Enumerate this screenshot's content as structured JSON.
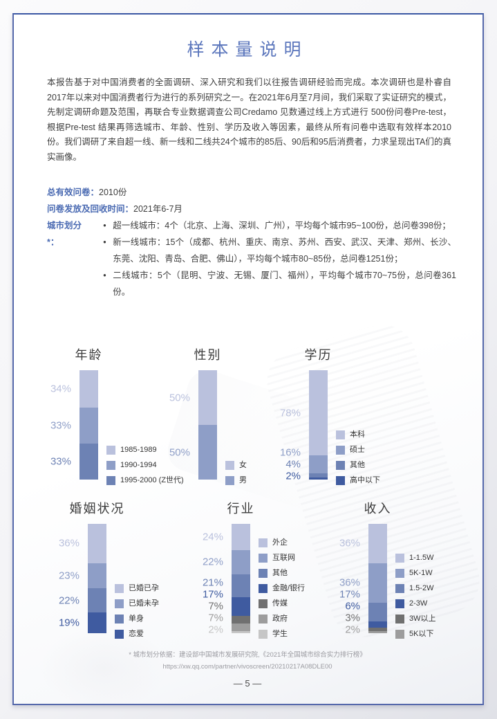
{
  "page": {
    "title": "样本量说明",
    "paragraph": "本报告基于对中国消费者的全面调研、深入研究和我们以往报告调研经验而完成。本次调研也是朴睿自2017年以来对中国消费者行为进行的系列研究之一。在2021年6月至7月间，我们采取了实证研究的模式，先制定调研命题及范围，再联合专业数据调查公司Credamo 见数通过线上方式进行 500份问卷Pre-test，根据Pre-test 结果再筛选城市、年龄、性别、学历及收入等因素，最终从所有问卷中选取有效样本2010份。我们调研了来自超一线、新一线和二线共24个城市的85后、90后和95后消费者，力求呈现出TA们的真实画像。",
    "info": {
      "total": {
        "label": "总有效问卷：",
        "value": "2010份"
      },
      "time": {
        "label": "问卷发放及回收时间：",
        "value": "2021年6-7月"
      },
      "city": {
        "label": "城市划分*："
      }
    },
    "bullets": [
      "超一线城市：4个（北京、上海、深圳、广州），平均每个城市95~100份，总问卷398份；",
      "新一线城市：15个（成都、杭州、重庆、南京、苏州、西安、武汉、天津、郑州、长沙、东莞、沈阳、青岛、合肥、佛山），平均每个城市80~85份，总问卷1251份；",
      "二线城市：5个（昆明、宁波、无锡、厦门、福州），平均每个城市70~75份，总问卷361份。"
    ],
    "footnote": {
      "line1": "* 城市划分依据：建设部中国城市发展研究院,《2021年全国城市综合实力排行榜》",
      "line2": "https://xw.qq.com/partner/vivoscreen/20210217A08DLE00"
    },
    "page_number": "— 5 —"
  },
  "colors": {
    "title_blue": "#5b76bc",
    "label_blue": "#4a6ab2",
    "ramp_light": "#bac1dd",
    "ramp_mid": "#8e9ec7",
    "ramp_dark": "#6d82b4",
    "ramp_navy": "#3f5ba0",
    "gray_dark": "#707070",
    "gray_mid": "#9d9d9d",
    "gray_light": "#c6c6c6"
  },
  "chart_data": [
    {
      "type": "bar",
      "title": "年龄",
      "stacked": true,
      "unit": "%",
      "segments": [
        {
          "label": "1985-1989",
          "value": 34,
          "color": "#bac1dd"
        },
        {
          "label": "1990-1994",
          "value": 33,
          "color": "#8e9ec7"
        },
        {
          "label": "1995-2000 (Z世代)",
          "value": 33,
          "color": "#6d82b4"
        }
      ]
    },
    {
      "type": "bar",
      "title": "性别",
      "stacked": true,
      "unit": "%",
      "segments": [
        {
          "label": "女",
          "value": 50,
          "color": "#bac1dd"
        },
        {
          "label": "男",
          "value": 50,
          "color": "#8e9ec7"
        }
      ]
    },
    {
      "type": "bar",
      "title": "学历",
      "stacked": true,
      "unit": "%",
      "segments": [
        {
          "label": "本科",
          "value": 78,
          "color": "#bac1dd"
        },
        {
          "label": "硕士",
          "value": 16,
          "color": "#8e9ec7"
        },
        {
          "label": "其他",
          "value": 4,
          "color": "#6d82b4"
        },
        {
          "label": "高中以下",
          "value": 2,
          "color": "#3f5ba0"
        }
      ]
    },
    {
      "type": "bar",
      "title": "婚姻状况",
      "stacked": true,
      "unit": "%",
      "segments": [
        {
          "label": "已婚已孕",
          "value": 36,
          "color": "#bac1dd"
        },
        {
          "label": "已婚未孕",
          "value": 23,
          "color": "#8e9ec7"
        },
        {
          "label": "单身",
          "value": 22,
          "color": "#6d82b4"
        },
        {
          "label": "恋爱",
          "value": 19,
          "color": "#3f5ba0"
        }
      ]
    },
    {
      "type": "bar",
      "title": "行业",
      "stacked": true,
      "unit": "%",
      "segments": [
        {
          "label": "外企",
          "value": 24,
          "color": "#bac1dd"
        },
        {
          "label": "互联网",
          "value": 22,
          "color": "#8e9ec7"
        },
        {
          "label": "其他",
          "value": 21,
          "color": "#6d82b4"
        },
        {
          "label": "金融/银行",
          "value": 17,
          "color": "#3f5ba0"
        },
        {
          "label": "传媒",
          "value": 7,
          "color": "#707070"
        },
        {
          "label": "政府",
          "value": 7,
          "color": "#9d9d9d"
        },
        {
          "label": "学生",
          "value": 2,
          "color": "#c6c6c6"
        }
      ]
    },
    {
      "type": "bar",
      "title": "收入",
      "stacked": true,
      "unit": "%",
      "segments": [
        {
          "label": "1-1.5W",
          "value": 36,
          "color": "#bac1dd"
        },
        {
          "label": "5K-1W",
          "value": 36,
          "color": "#8e9ec7"
        },
        {
          "label": "1.5-2W",
          "value": 17,
          "color": "#6d82b4"
        },
        {
          "label": "2-3W",
          "value": 6,
          "color": "#3f5ba0"
        },
        {
          "label": "3W以上",
          "value": 3,
          "color": "#707070"
        },
        {
          "label": "5K以下",
          "value": 2,
          "color": "#9d9d9d"
        }
      ]
    }
  ]
}
